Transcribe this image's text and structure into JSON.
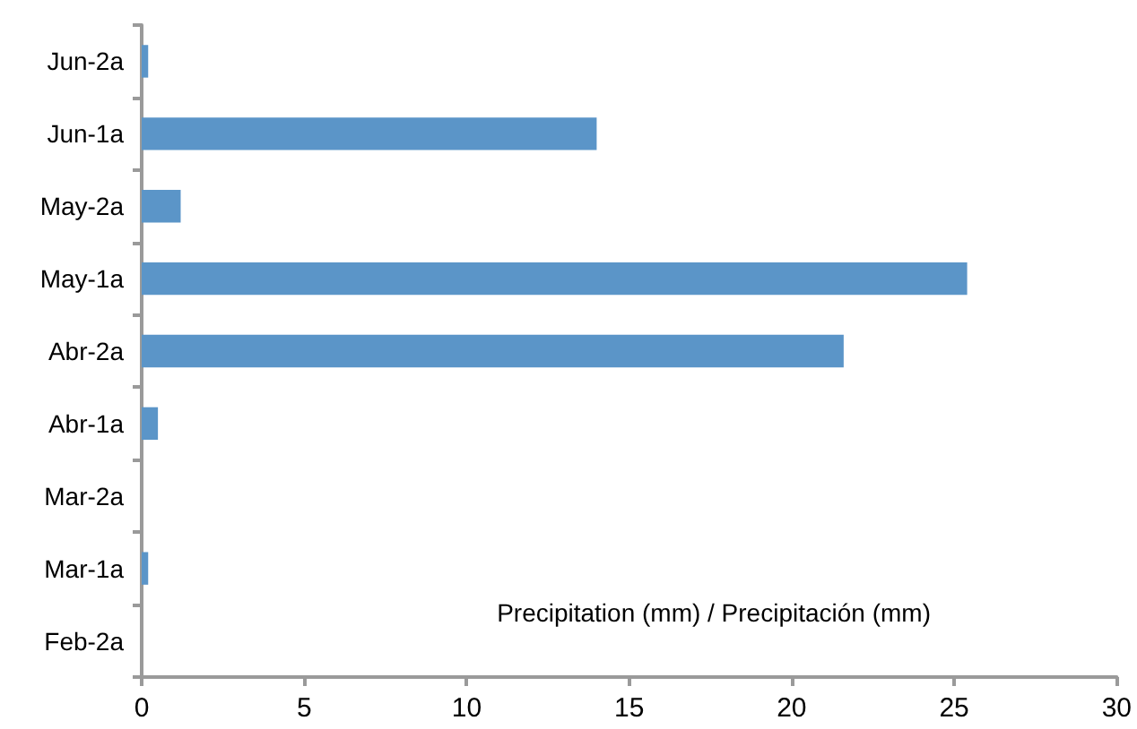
{
  "chart_data": {
    "type": "bar",
    "orientation": "horizontal",
    "xlabel": "Precipitation (mm) / Precipitación (mm)",
    "categories": [
      "Jun-2a",
      "Jun-1a",
      "May-2a",
      "May-1a",
      "Abr-2a",
      "Abr-1a",
      "Mar-2a",
      "Mar-1a",
      "Feb-2a"
    ],
    "values": [
      0.2,
      14.0,
      1.2,
      25.4,
      21.6,
      0.5,
      0,
      0.2,
      0
    ],
    "color": "#5b95c8",
    "xlim": [
      0,
      30
    ],
    "xticks": [
      0,
      5,
      10,
      15,
      20,
      25,
      30
    ],
    "grid": false
  }
}
